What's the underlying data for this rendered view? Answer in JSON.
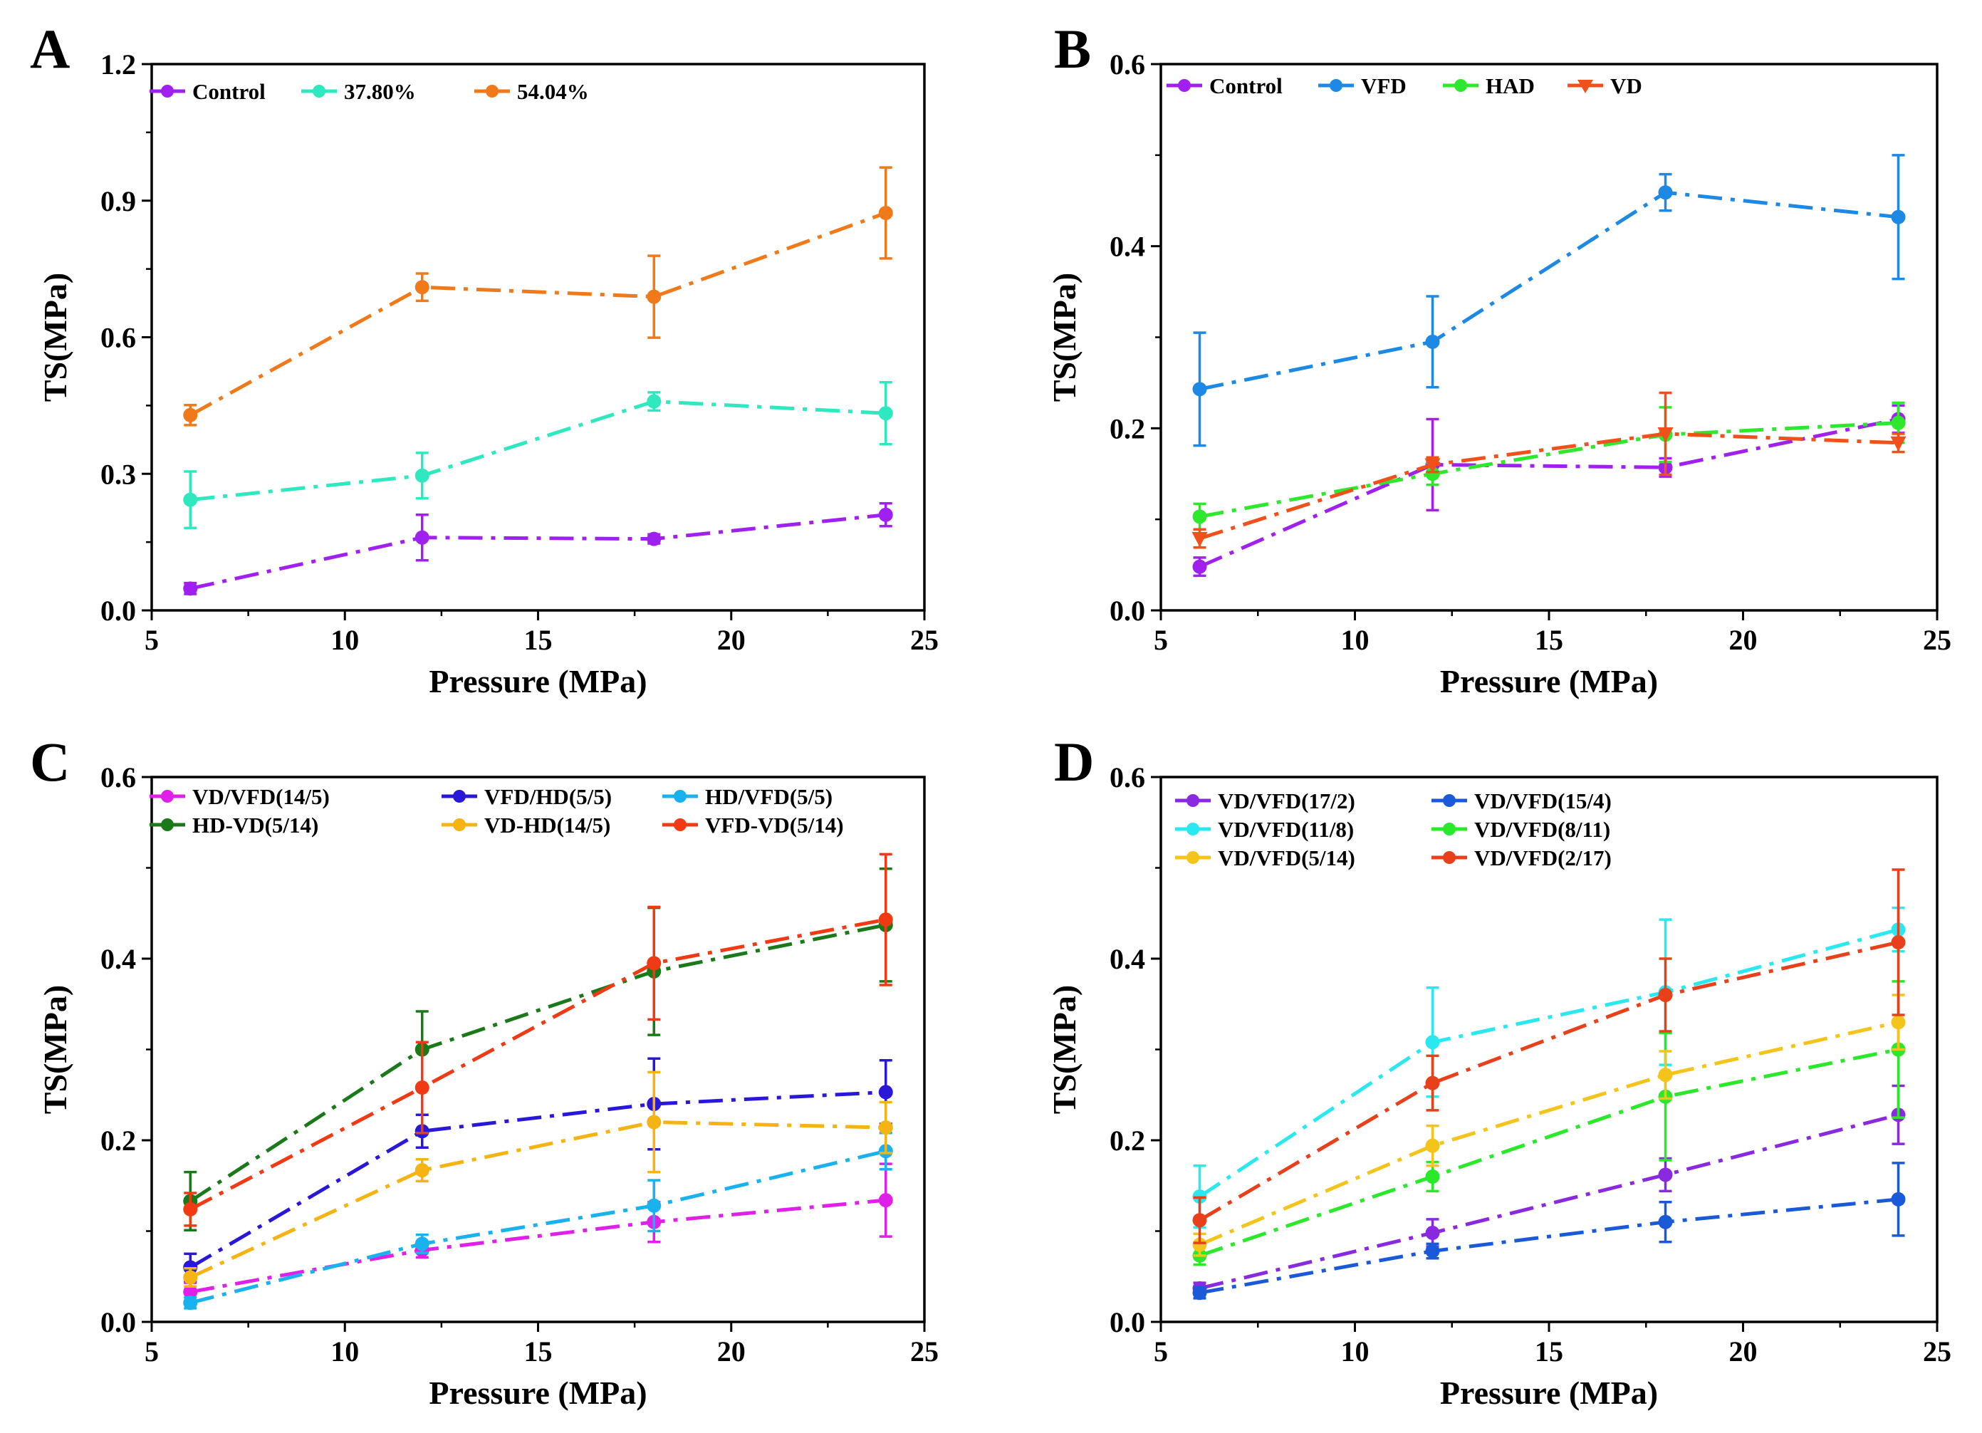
{
  "chart_data": [
    {
      "panel": "A",
      "type": "line",
      "xlabel": "Pressure (MPa)",
      "ylabel": "TS(MPa)",
      "xlim": [
        5,
        25
      ],
      "ylim": [
        0,
        1.2
      ],
      "xticks": [
        5,
        10,
        15,
        20,
        25
      ],
      "yticks": [
        0.0,
        0.3,
        0.6,
        0.9,
        1.2
      ],
      "ytick_labels": [
        "0.0",
        "0.3",
        "0.6",
        "0.9",
        "1.2"
      ],
      "x": [
        6,
        12,
        18,
        24
      ],
      "legend_rows": [
        [
          0,
          1,
          2
        ]
      ],
      "series": [
        {
          "name": "Control",
          "color": "#a020f0",
          "marker": "circle",
          "values": [
            0.048,
            0.16,
            0.157,
            0.21
          ],
          "errors": [
            0.012,
            0.05,
            0.01,
            0.025
          ]
        },
        {
          "name": "37.80%",
          "color": "#2ee8c0",
          "marker": "circle",
          "values": [
            0.243,
            0.296,
            0.459,
            0.433
          ],
          "errors": [
            0.062,
            0.05,
            0.02,
            0.068
          ]
        },
        {
          "name": "54.04%",
          "color": "#f07a1a",
          "marker": "circle",
          "values": [
            0.429,
            0.71,
            0.689,
            0.873
          ],
          "errors": [
            0.022,
            0.03,
            0.09,
            0.1
          ]
        }
      ]
    },
    {
      "panel": "B",
      "type": "line",
      "xlabel": "Pressure (MPa)",
      "ylabel": "TS(MPa)",
      "xlim": [
        5,
        25
      ],
      "ylim": [
        0,
        0.6
      ],
      "xticks": [
        5,
        10,
        15,
        20,
        25
      ],
      "yticks": [
        0.0,
        0.2,
        0.4,
        0.6
      ],
      "ytick_labels": [
        "0.0",
        "0.2",
        "0.4",
        "0.6"
      ],
      "x": [
        6,
        12,
        18,
        24
      ],
      "legend_rows": [
        [
          0,
          1,
          2,
          3
        ]
      ],
      "series": [
        {
          "name": "Control",
          "color": "#a020f0",
          "marker": "circle",
          "values": [
            0.048,
            0.16,
            0.157,
            0.21
          ],
          "errors": [
            0.01,
            0.05,
            0.01,
            0.015
          ]
        },
        {
          "name": "VFD",
          "color": "#1e88e5",
          "marker": "circle",
          "values": [
            0.243,
            0.295,
            0.459,
            0.432
          ],
          "errors": [
            0.062,
            0.05,
            0.02,
            0.068
          ]
        },
        {
          "name": "HAD",
          "color": "#2ee82e",
          "marker": "circle",
          "values": [
            0.103,
            0.15,
            0.193,
            0.206
          ],
          "errors": [
            0.014,
            0.012,
            0.03,
            0.022
          ]
        },
        {
          "name": "VD",
          "color": "#f0501a",
          "marker": "triangle-down",
          "values": [
            0.079,
            0.16,
            0.194,
            0.184
          ],
          "errors": [
            0.01,
            0.008,
            0.045,
            0.01
          ]
        }
      ]
    },
    {
      "panel": "C",
      "type": "line",
      "xlabel": "Pressure (MPa)",
      "ylabel": "TS(MPa)",
      "xlim": [
        5,
        25
      ],
      "ylim": [
        0,
        0.6
      ],
      "xticks": [
        5,
        10,
        15,
        20,
        25
      ],
      "yticks": [
        0.0,
        0.2,
        0.4,
        0.6
      ],
      "ytick_labels": [
        "0.0",
        "0.2",
        "0.4",
        "0.6"
      ],
      "x": [
        6,
        12,
        18,
        24
      ],
      "legend_rows": [
        [
          0,
          1,
          2
        ],
        [
          3,
          4,
          5
        ]
      ],
      "series": [
        {
          "name": "VD/VFD(14/5)",
          "color": "#e020e8",
          "marker": "circle",
          "values": [
            0.033,
            0.079,
            0.11,
            0.134
          ],
          "errors": [
            0.01,
            0.008,
            0.022,
            0.04
          ]
        },
        {
          "name": "VFD/HD(5/5)",
          "color": "#2a18d8",
          "marker": "circle",
          "values": [
            0.06,
            0.21,
            0.24,
            0.253
          ],
          "errors": [
            0.015,
            0.018,
            0.05,
            0.035
          ]
        },
        {
          "name": "HD/VFD(5/5)",
          "color": "#1ab2ee",
          "marker": "circle",
          "values": [
            0.021,
            0.086,
            0.128,
            0.188
          ],
          "errors": [
            0.006,
            0.01,
            0.028,
            0.02
          ]
        },
        {
          "name": "HD-VD(5/14)",
          "color": "#1a7a1a",
          "marker": "circle",
          "values": [
            0.133,
            0.3,
            0.386,
            0.437
          ],
          "errors": [
            0.032,
            0.042,
            0.07,
            0.062
          ]
        },
        {
          "name": "VD-HD(14/5)",
          "color": "#f5b414",
          "marker": "circle",
          "values": [
            0.049,
            0.167,
            0.22,
            0.214
          ],
          "errors": [
            0.01,
            0.012,
            0.055,
            0.028
          ]
        },
        {
          "name": "VFD-VD(5/14)",
          "color": "#f03a14",
          "marker": "circle",
          "values": [
            0.124,
            0.258,
            0.395,
            0.443
          ],
          "errors": [
            0.018,
            0.05,
            0.062,
            0.072
          ]
        }
      ]
    },
    {
      "panel": "D",
      "type": "line",
      "xlabel": "Pressure (MPa)",
      "ylabel": "TS(MPa)",
      "xlim": [
        5,
        25
      ],
      "ylim": [
        0,
        0.6
      ],
      "xticks": [
        5,
        10,
        15,
        20,
        25
      ],
      "yticks": [
        0.0,
        0.2,
        0.4,
        0.6
      ],
      "ytick_labels": [
        "0.0",
        "0.2",
        "0.4",
        "0.6"
      ],
      "x": [
        6,
        12,
        18,
        24
      ],
      "legend_rows": [
        [
          0,
          1
        ],
        [
          2,
          3
        ],
        [
          4,
          5
        ]
      ],
      "series": [
        {
          "name": "VD/VFD(17/2)",
          "color": "#8a2ae0",
          "marker": "circle",
          "values": [
            0.037,
            0.098,
            0.162,
            0.228
          ],
          "errors": [
            0.006,
            0.015,
            0.018,
            0.032
          ]
        },
        {
          "name": "VD/VFD(15/4)",
          "color": "#1a5ad8",
          "marker": "circle",
          "values": [
            0.032,
            0.078,
            0.11,
            0.135
          ],
          "errors": [
            0.006,
            0.008,
            0.022,
            0.04
          ]
        },
        {
          "name": "VD/VFD(11/8)",
          "color": "#2ae8f0",
          "marker": "circle",
          "values": [
            0.138,
            0.308,
            0.363,
            0.432
          ],
          "errors": [
            0.034,
            0.06,
            0.08,
            0.024
          ]
        },
        {
          "name": "VD/VFD(8/11)",
          "color": "#2ae82a",
          "marker": "circle",
          "values": [
            0.073,
            0.16,
            0.248,
            0.3
          ],
          "errors": [
            0.01,
            0.016,
            0.07,
            0.075
          ]
        },
        {
          "name": "VD/VFD(5/14)",
          "color": "#f5c41a",
          "marker": "circle",
          "values": [
            0.085,
            0.194,
            0.272,
            0.33
          ],
          "errors": [
            0.012,
            0.022,
            0.026,
            0.03
          ]
        },
        {
          "name": "VD/VFD(2/17)",
          "color": "#e8401a",
          "marker": "circle",
          "values": [
            0.112,
            0.263,
            0.36,
            0.418
          ],
          "errors": [
            0.025,
            0.03,
            0.04,
            0.08
          ]
        }
      ]
    }
  ]
}
